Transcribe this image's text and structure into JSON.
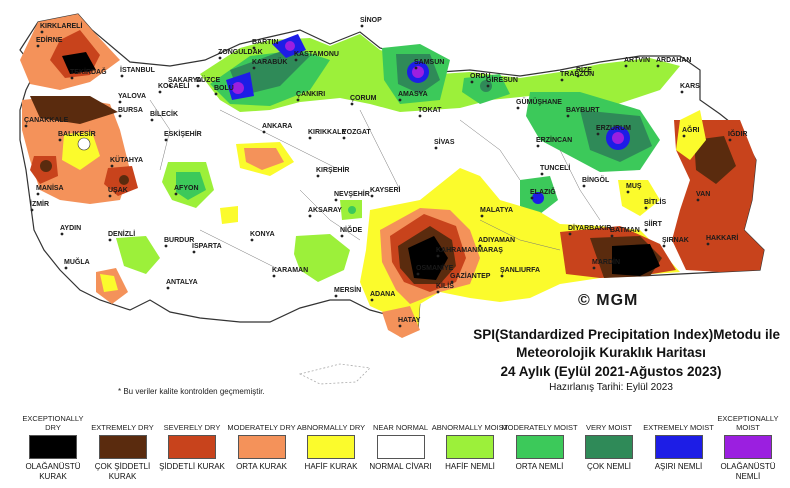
{
  "map": {
    "copyright": "© MGM",
    "note": "* Bu veriler kalite kontrolden geçmemiştir.",
    "cities": [
      "KIRKLARELİ",
      "EDİRNE",
      "TEKİRDAĞ",
      "İSTANBUL",
      "KOCAELİ",
      "SAKARYA",
      "DÜZCE",
      "BOLU",
      "BARTIN",
      "ZONGULDAK",
      "KARABÜK",
      "KASTAMONU",
      "SİNOP",
      "SAMSUN",
      "ORDU",
      "GİRESUN",
      "TRABZON",
      "RİZE",
      "ARTVİN",
      "ARDAHAN",
      "KARS",
      "IĞDIR",
      "AĞRI",
      "ERZURUM",
      "BAYBURT",
      "GÜMÜŞHANE",
      "ERZİNCAN",
      "AMASYA",
      "TOKAT",
      "ÇORUM",
      "ÇANKIRI",
      "ANKARA",
      "KIRIKKALE",
      "YOZGAT",
      "SİVAS",
      "KIRŞEHİR",
      "NEVŞEHİR",
      "KAYSERİ",
      "MALATYA",
      "ELAZIĞ",
      "TUNCELİ",
      "BİNGÖL",
      "MUŞ",
      "BİTLİS",
      "VAN",
      "HAKKARİ",
      "ŞIRNAK",
      "SİİRT",
      "BATMAN",
      "DİYARBAKIR",
      "MARDİN",
      "ŞANLIURFA",
      "ADIYAMAN",
      "GAZİANTEP",
      "KİLİS",
      "KAHRAMANMARAŞ",
      "OSMANİYE",
      "HATAY",
      "ADANA",
      "MERSİN",
      "NİĞDE",
      "AKSARAY",
      "KONYA",
      "KARAMAN",
      "ANTALYA",
      "ISPARTA",
      "BURDUR",
      "DENİZLİ",
      "MUĞLA",
      "AYDIN",
      "İZMİR",
      "MANİSA",
      "UŞAK",
      "AFYON",
      "KÜTAHYA",
      "ESKİŞEHİR",
      "BİLECİK",
      "BURSA",
      "YALOVA",
      "BALIKESİR",
      "ÇANAKKALE"
    ]
  },
  "title": {
    "line1": "SPI(Standardized Precipitation Index)Metodu ile",
    "line2": "Meteorolojik Kuraklık Haritası",
    "line3": "24 Aylık (Eylül 2021-Ağustos 2023)",
    "line4": "Hazırlanış Tarihi: Eylül 2023"
  },
  "legend": [
    {
      "en": "EXCEPTIONALLY DRY",
      "tr": "OLAĞANÜSTÜ KURAK",
      "color": "#000000"
    },
    {
      "en": "EXTREMELY DRY",
      "tr": "ÇOK ŞİDDETLİ KURAK",
      "color": "#5a2b0e"
    },
    {
      "en": "SEVERELY DRY",
      "tr": "ŞİDDETLİ KURAK",
      "color": "#c8431c"
    },
    {
      "en": "MODERATELY DRY",
      "tr": "ORTA KURAK",
      "color": "#f4925a"
    },
    {
      "en": "ABNORMALLY DRY",
      "tr": "HAFİF KURAK",
      "color": "#fbfb2c"
    },
    {
      "en": "NEAR NORMAL",
      "tr": "NORMAL CİVARI",
      "color": "#ffffff"
    },
    {
      "en": "ABNORMALLY MOIST",
      "tr": "HAFİF NEMLİ",
      "color": "#9cf03a"
    },
    {
      "en": "MODERATELY MOIST",
      "tr": "ORTA NEMLİ",
      "color": "#3cc95a"
    },
    {
      "en": "VERY MOIST",
      "tr": "ÇOK NEMLİ",
      "color": "#2f8a58"
    },
    {
      "en": "EXTREMELY MOIST",
      "tr": "AŞIRI NEMLİ",
      "color": "#1d1de6"
    },
    {
      "en": "EXCEPTIONALLY MOIST",
      "tr": "OLAĞANÜSTÜ NEMLİ",
      "color": "#9b1fe0"
    }
  ]
}
